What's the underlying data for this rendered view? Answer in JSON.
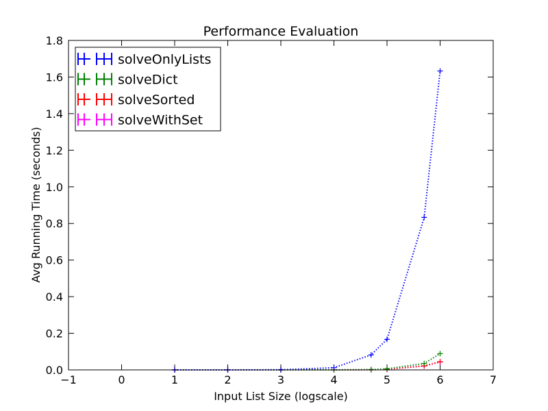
{
  "chart_data": {
    "type": "line",
    "title": "Performance Evaluation",
    "xlabel": "Input List Size (logscale)",
    "ylabel": "Avg Running Time (seconds)",
    "xlim": [
      -1,
      7
    ],
    "ylim": [
      0,
      1.8
    ],
    "xticks": [
      "−1",
      "0",
      "1",
      "2",
      "3",
      "4",
      "5",
      "6",
      "7"
    ],
    "yticks": [
      "0.0",
      "0.2",
      "0.4",
      "0.6",
      "0.8",
      "1.0",
      "1.2",
      "1.4",
      "1.6",
      "1.8"
    ],
    "grid": false,
    "legend_position": "top-left",
    "series": [
      {
        "name": "solveOnlyLists",
        "color": "#0000ff",
        "x": [
          1,
          2,
          3,
          4,
          4.7,
          5,
          5.7,
          6
        ],
        "y": [
          0.0,
          0.0,
          0.001,
          0.012,
          0.082,
          0.167,
          0.833,
          1.633
        ]
      },
      {
        "name": "solveDict",
        "color": "#008000",
        "x": [
          1,
          2,
          3,
          4,
          4.7,
          5,
          5.7,
          6
        ],
        "y": [
          0.0,
          0.0,
          0.0,
          0.0,
          0.002,
          0.006,
          0.035,
          0.089
        ]
      },
      {
        "name": "solveSorted",
        "color": "#ff0000",
        "x": [
          1,
          2,
          3,
          4,
          4.7,
          5,
          5.7,
          6
        ],
        "y": [
          0.0,
          0.0,
          0.0,
          0.0,
          0.001,
          0.003,
          0.022,
          0.045
        ]
      },
      {
        "name": "solveWithSet",
        "color": "#ff00ff",
        "x": [
          1,
          2,
          3,
          4,
          4.7,
          5,
          5.7,
          6
        ],
        "y": [
          0.0,
          0.0,
          0.0,
          0.0,
          0.001,
          0.003,
          0.021,
          0.043
        ]
      }
    ]
  }
}
